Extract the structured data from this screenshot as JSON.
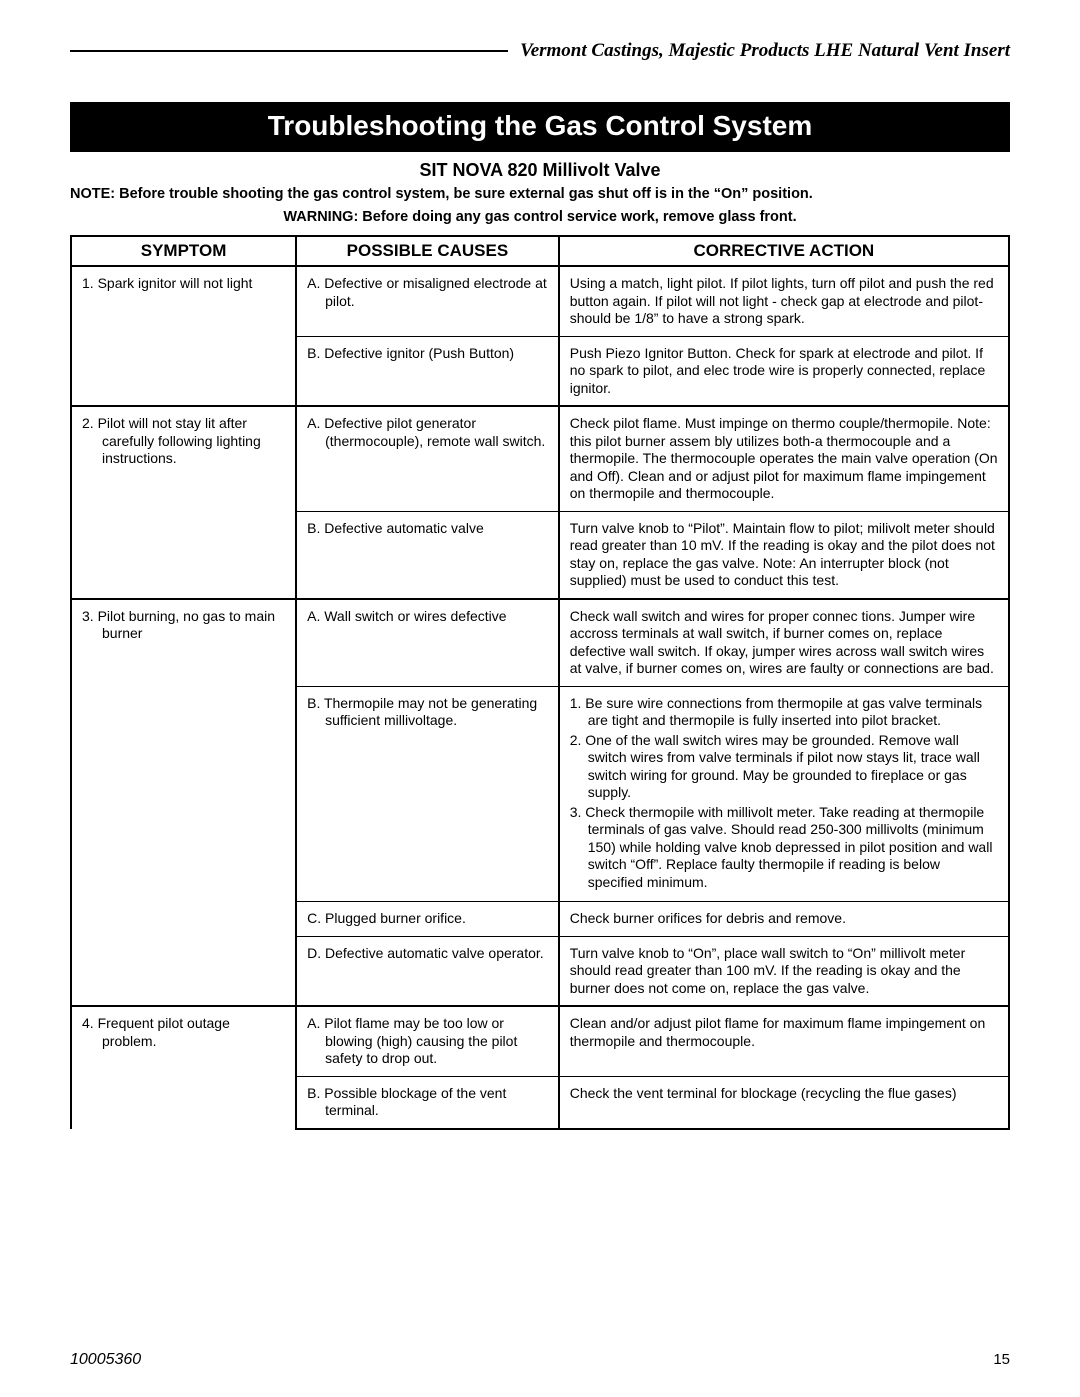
{
  "header": {
    "product_line": "Vermont Castings, Majestic Products LHE Natural Vent Insert"
  },
  "title": "Troubleshooting the Gas Control System",
  "subtitle": "SIT NOVA 820 Millivolt Valve",
  "note": "NOTE:  Before trouble shooting the gas control system, be sure external gas shut off is in the “On” position.",
  "warning": "WARNING:  Before doing any gas control service work, remove glass front.",
  "columns": {
    "symptom": "SYMPTOM",
    "cause": "POSSIBLE CAUSES",
    "action": "CORRECTIVE ACTION"
  },
  "rows": {
    "s1": {
      "symptom": "1. Spark ignitor will not light",
      "a_cause": "A. Defective or misaligned electrode at pilot.",
      "a_action": "Using a match, light pilot. If pilot lights, turn off pilot and push the red button again.  If pilot will not light - check gap at electrode and pilot-should be 1/8” to have a strong spark.",
      "b_cause": "B.  Defective ignitor (Push Button)",
      "b_action": "Push Piezo Ignitor Button. Check for spark at electrode and pilot. If no spark to pilot, and elec trode wire is properly connected, replace ignitor."
    },
    "s2": {
      "symptom": "2. Pilot will not stay lit after carefully following lighting instructions.",
      "a_cause": "A.  Defective pilot generator (thermocouple), remote wall switch.",
      "a_action": "Check pilot flame.  Must impinge on thermo couple/thermopile.  Note: this pilot burner assem bly utilizes both-a thermocouple and a thermopile. The thermocouple operates the main valve operation (On and Off). Clean and or adjust pilot for maximum flame impingement on thermopile and thermocouple.",
      "b_cause": "B. Defective automatic valve",
      "b_action": "Turn valve knob to “Pilot”.  Maintain flow to pilot; milivolt meter should read greater than 10 mV.  If the reading is okay and the pilot does not stay on, replace the gas valve.  Note:  An interrupter block (not supplied) must be used to conduct this test."
    },
    "s3": {
      "symptom": "3. Pilot burning, no gas to main burner",
      "a_cause": "A. Wall switch or wires defective",
      "a_action": "Check wall switch and wires for proper connec tions. Jumper wire accross terminals at wall switch, if burner comes on, replace defective wall switch. If okay, jumper wires across wall switch wires at valve, if burner comes on, wires are faulty or connections are bad.",
      "b_cause": "B. Thermopile may not be generating sufficient millivoltage.",
      "b_action_1": "1.  Be sure wire connections from thermopile at gas valve terminals are tight and thermopile is fully inserted into pilot bracket.",
      "b_action_2": "2.  One of the wall switch wires may be grounded. Remove wall switch wires from valve terminals if pilot now stays lit, trace wall switch wiring for ground. May be grounded to fireplace or gas supply.",
      "b_action_3": "3.  Check thermopile with millivolt meter. Take reading at thermopile terminals of gas valve. Should read 250-300 millivolts (minimum 150) while holding valve knob depressed in pilot position and wall switch “Off”.  Replace faulty thermopile if reading is below specified minimum.",
      "c_cause": "C. Plugged burner orifice.",
      "c_action": "Check burner orifices for debris and remove.",
      "d_cause": "D. Defective automatic valve operator.",
      "d_action": "Turn valve knob to “On”, place wall switch to “On” millivolt meter should read greater than 100 mV.  If the reading is okay and the burner does not come on, replace the gas valve."
    },
    "s4": {
      "symptom": "4. Frequent pilot outage problem.",
      "a_cause": "A. Pilot flame may be too low or blowing (high) causing the pilot safety to drop out.",
      "a_action": "Clean and/or adjust pilot flame for maximum flame impingement on thermopile and thermocouple.",
      "b_cause": "B. Possible blockage of the vent terminal.",
      "b_action": "Check the vent terminal for blockage (recycling the flue gases)"
    }
  },
  "footer": {
    "doc_number": "10005360",
    "page_number": "15"
  },
  "colors": {
    "title_bg": "#000000",
    "title_fg": "#ffffff",
    "border": "#000000",
    "text": "#000000",
    "page_bg": "#ffffff"
  }
}
